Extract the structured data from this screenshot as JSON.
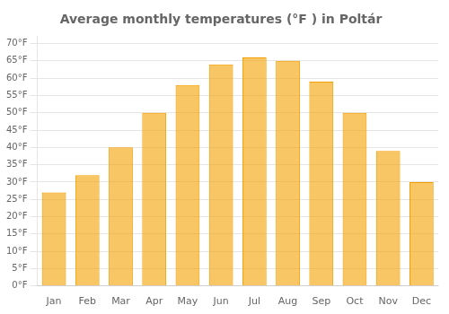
{
  "chart_data": {
    "type": "bar",
    "title": "Average monthly temperatures (°F ) in Poltár",
    "categories": [
      "Jan",
      "Feb",
      "Mar",
      "Apr",
      "May",
      "Jun",
      "Jul",
      "Aug",
      "Sep",
      "Oct",
      "Nov",
      "Dec"
    ],
    "values": [
      27,
      32,
      40,
      50,
      58,
      64,
      66,
      65,
      59,
      50,
      39,
      30
    ],
    "color": "#F5A000",
    "ylim": [
      0,
      72
    ],
    "yticks": [
      {
        "value": 0,
        "label": "0°F"
      },
      {
        "value": 5,
        "label": "5°F"
      },
      {
        "value": 10,
        "label": "10°F"
      },
      {
        "value": 15,
        "label": "15°F"
      },
      {
        "value": 20,
        "label": "20°F"
      },
      {
        "value": 25,
        "label": "25°F"
      },
      {
        "value": 30,
        "label": "30°F"
      },
      {
        "value": 35,
        "label": "35°F"
      },
      {
        "value": 40,
        "label": "40°F"
      },
      {
        "value": 45,
        "label": "45°F"
      },
      {
        "value": 50,
        "label": "50°F"
      },
      {
        "value": 55,
        "label": "55°F"
      },
      {
        "value": 60,
        "label": "60°F"
      },
      {
        "value": 65,
        "label": "65°F"
      },
      {
        "value": 70,
        "label": "70°F"
      }
    ],
    "grid": true
  }
}
